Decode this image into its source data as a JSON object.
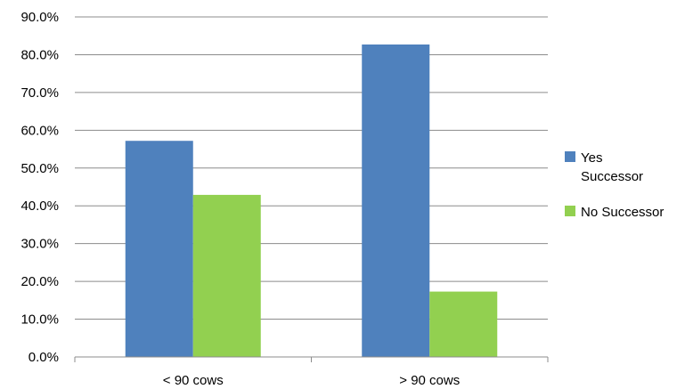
{
  "chart_data": {
    "type": "bar",
    "title": "",
    "xlabel": "",
    "ylabel": "",
    "categories": [
      "< 90 cows",
      "> 90 cows"
    ],
    "series": [
      {
        "name": "Yes Successor",
        "values": [
          57.2,
          82.7
        ],
        "color": "#4F81BD"
      },
      {
        "name": "No Successor",
        "values": [
          42.9,
          17.3
        ],
        "color": "#92D050"
      }
    ],
    "ylim": [
      0,
      90
    ],
    "yticks": [
      "0.0%",
      "10.0%",
      "20.0%",
      "30.0%",
      "40.0%",
      "50.0%",
      "60.0%",
      "70.0%",
      "80.0%",
      "90.0%"
    ],
    "grid": true,
    "legend_position": "right"
  }
}
